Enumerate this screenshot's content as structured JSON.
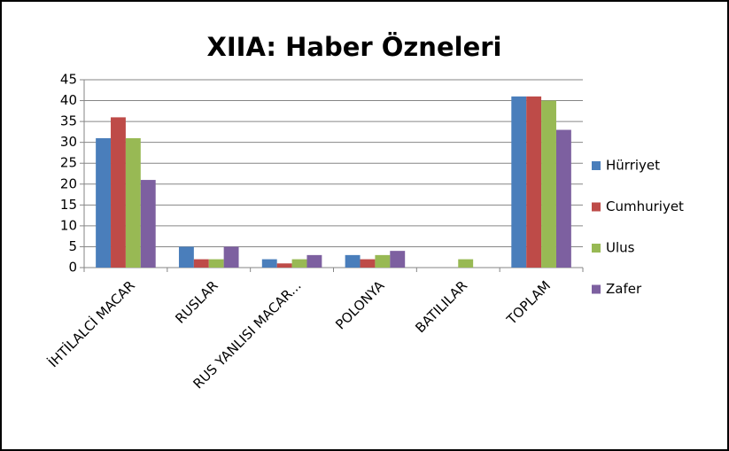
{
  "chart_data": {
    "type": "bar",
    "title": "XIIA: Haber Özneleri",
    "categories": [
      "İHTİLALCİ MACAR",
      "RUSLAR",
      "RUS YANLISI MACAR...",
      "POLONYA",
      "BATILILAR",
      "TOPLAM"
    ],
    "series": [
      {
        "name": "Hürriyet",
        "color": "#4a7ebb",
        "values": [
          31,
          5,
          2,
          3,
          0,
          41
        ]
      },
      {
        "name": "Cumhuriyet",
        "color": "#be4b48",
        "values": [
          36,
          2,
          1,
          2,
          0,
          41
        ]
      },
      {
        "name": "Ulus",
        "color": "#98b954",
        "values": [
          31,
          2,
          2,
          3,
          2,
          40
        ]
      },
      {
        "name": "Zafer",
        "color": "#7d60a0",
        "values": [
          21,
          5,
          3,
          4,
          0,
          33
        ]
      }
    ],
    "ylim": [
      0,
      45
    ],
    "yticks": [
      0,
      5,
      10,
      15,
      20,
      25,
      30,
      35,
      40,
      45
    ],
    "grid": true,
    "legend": "right"
  }
}
